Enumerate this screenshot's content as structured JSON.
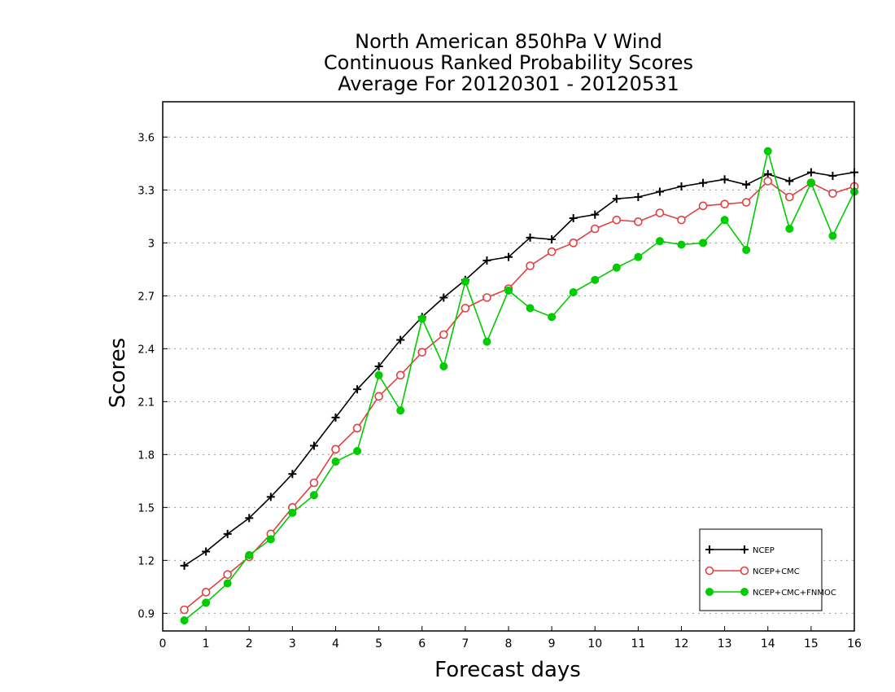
{
  "chart_data": {
    "type": "line",
    "title": [
      "North American 850hPa V Wind",
      "Continuous Ranked Probability Scores",
      "Average For 20120301 - 20120531"
    ],
    "xlabel": "Forecast days",
    "ylabel": "Scores",
    "xlim": [
      0,
      16
    ],
    "ylim": [
      0.8,
      3.8
    ],
    "xticks": [
      "0",
      "1",
      "2",
      "3",
      "4",
      "5",
      "6",
      "7",
      "8",
      "9",
      "10",
      "11",
      "12",
      "13",
      "14",
      "15",
      "16"
    ],
    "yticks": [
      "0.9",
      "1.2",
      "1.5",
      "1.8",
      "2.1",
      "2.4",
      "2.7",
      "3",
      "3.3",
      "3.6"
    ],
    "grid": "horizontal dotted",
    "legend_position": "bottom-right",
    "x": [
      0.5,
      1,
      1.5,
      2,
      2.5,
      3,
      3.5,
      4,
      4.5,
      5,
      5.5,
      6,
      6.5,
      7,
      7.5,
      8,
      8.5,
      9,
      9.5,
      10,
      10.5,
      11,
      11.5,
      12,
      12.5,
      13,
      13.5,
      14,
      14.5,
      15,
      15.5,
      16
    ],
    "series": [
      {
        "name": "NCEP",
        "color": "#000000",
        "marker": "plus",
        "values": [
          1.17,
          1.25,
          1.35,
          1.44,
          1.56,
          1.69,
          1.85,
          2.01,
          2.17,
          2.3,
          2.45,
          2.58,
          2.69,
          2.79,
          2.9,
          2.92,
          3.03,
          3.02,
          3.14,
          3.16,
          3.25,
          3.26,
          3.29,
          3.32,
          3.34,
          3.36,
          3.33,
          3.39,
          3.35,
          3.4,
          3.38,
          3.4
        ]
      },
      {
        "name": "NCEP+CMC",
        "color": "#e04040",
        "marker": "open-circle",
        "values": [
          0.92,
          1.02,
          1.12,
          1.22,
          1.35,
          1.5,
          1.64,
          1.83,
          1.95,
          2.13,
          2.25,
          2.38,
          2.48,
          2.63,
          2.69,
          2.74,
          2.87,
          2.95,
          3.0,
          3.08,
          3.13,
          3.12,
          3.17,
          3.13,
          3.21,
          3.22,
          3.23,
          3.35,
          3.26,
          3.34,
          3.28,
          3.32
        ]
      },
      {
        "name": "NCEP+CMC+FNMOC",
        "color": "#00cc00",
        "marker": "filled-circle",
        "values": [
          0.86,
          0.96,
          1.07,
          1.23,
          1.32,
          1.47,
          1.57,
          1.76,
          1.82,
          2.25,
          2.05,
          2.57,
          2.3,
          2.78,
          2.44,
          2.73,
          2.63,
          2.58,
          2.72,
          2.79,
          2.86,
          2.92,
          3.01,
          2.99,
          3.0,
          3.13,
          2.96,
          3.52,
          3.08,
          3.34,
          3.04,
          3.29
        ]
      }
    ]
  }
}
